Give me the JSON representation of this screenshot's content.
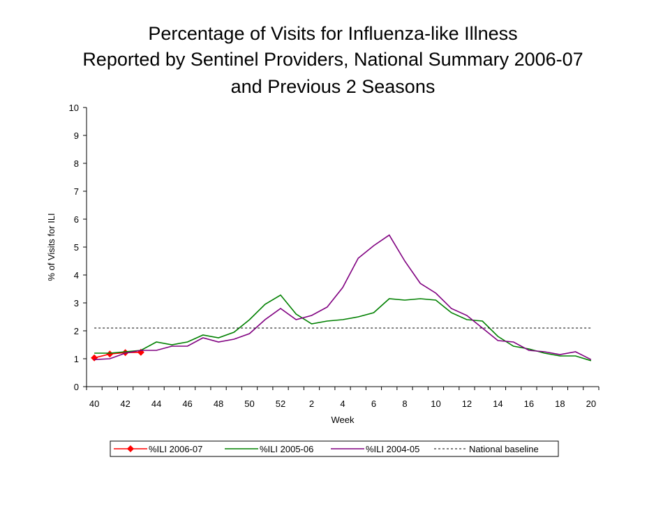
{
  "chart_data": {
    "type": "line",
    "title": [
      "Percentage of Visits for Influenza-like Illness",
      "Reported by Sentinel Providers, National Summary 2006-07",
      "and Previous 2 Seasons"
    ],
    "y_label": "% of Visits for ILI",
    "x_label": "Week",
    "categories": [
      "40",
      null,
      "42",
      null,
      "44",
      null,
      "46",
      null,
      "48",
      null,
      "50",
      null,
      "52",
      null,
      "2",
      null,
      "4",
      null,
      "6",
      null,
      "8",
      null,
      "10",
      null,
      "12",
      null,
      "14",
      null,
      "16",
      null,
      "18",
      null,
      "20"
    ],
    "ylim": [
      0,
      10
    ],
    "yticks": [
      0,
      1,
      2,
      3,
      4,
      5,
      6,
      7,
      8,
      9,
      10
    ],
    "legend": "bottom",
    "series": [
      {
        "name": "%ILI 2006-07",
        "color": "#ff0000",
        "marker": "diamond",
        "values": [
          1.03,
          1.17,
          1.22,
          1.23,
          null,
          null,
          null,
          null,
          null,
          null,
          null,
          null,
          null,
          null,
          null,
          null,
          null,
          null,
          null,
          null,
          null,
          null,
          null,
          null,
          null,
          null,
          null,
          null,
          null,
          null,
          null,
          null,
          null
        ]
      },
      {
        "name": "%ILI 2005-06",
        "color": "#008000",
        "values": [
          1.2,
          1.2,
          1.25,
          1.3,
          1.6,
          1.5,
          1.6,
          1.85,
          1.75,
          1.95,
          2.4,
          2.95,
          3.28,
          2.6,
          2.25,
          2.35,
          2.4,
          2.5,
          2.65,
          3.15,
          3.1,
          3.15,
          3.1,
          2.65,
          2.4,
          2.35,
          1.8,
          1.45,
          1.35,
          1.2,
          1.1,
          1.1,
          0.93
        ]
      },
      {
        "name": "%ILI 2004-05",
        "color": "#800080",
        "values": [
          0.97,
          1.0,
          1.2,
          1.3,
          1.3,
          1.45,
          1.45,
          1.75,
          1.6,
          1.7,
          1.9,
          2.4,
          2.8,
          2.4,
          2.55,
          2.85,
          3.55,
          4.6,
          5.05,
          5.43,
          4.5,
          3.7,
          3.35,
          2.8,
          2.55,
          2.1,
          1.65,
          1.6,
          1.3,
          1.25,
          1.15,
          1.25,
          0.97
        ]
      },
      {
        "name": "National baseline",
        "color": "#000000",
        "dash": true,
        "values": [
          2.1,
          2.1,
          2.1,
          2.1,
          2.1,
          2.1,
          2.1,
          2.1,
          2.1,
          2.1,
          2.1,
          2.1,
          2.1,
          2.1,
          2.1,
          2.1,
          2.1,
          2.1,
          2.1,
          2.1,
          2.1,
          2.1,
          2.1,
          2.1,
          2.1,
          2.1,
          2.1,
          2.1,
          2.1,
          2.1,
          2.1,
          2.1,
          2.1
        ]
      }
    ]
  }
}
